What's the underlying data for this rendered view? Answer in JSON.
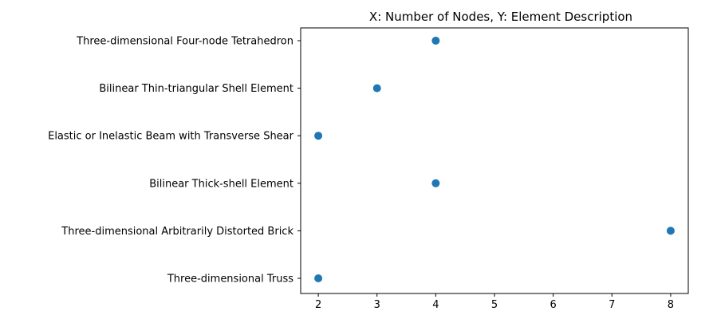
{
  "chart_data": {
    "type": "scatter",
    "title": "X: Number of Nodes, Y: Element Description",
    "xlabel": "",
    "ylabel": "",
    "categories": [
      "Three-dimensional Four-node Tetrahedron",
      "Bilinear Thin-triangular Shell Element",
      "Elastic or Inelastic Beam with Transverse Shear",
      "Bilinear Thick-shell Element",
      "Three-dimensional Arbitrarily Distorted Brick",
      "Three-dimensional Truss"
    ],
    "x": [
      4,
      3,
      2,
      4,
      8,
      2
    ],
    "xticks": [
      "2",
      "3",
      "4",
      "5",
      "6",
      "7",
      "8"
    ],
    "xlim": [
      1.7,
      8.3
    ],
    "grid": false,
    "marker_color": "#1f77b4"
  }
}
